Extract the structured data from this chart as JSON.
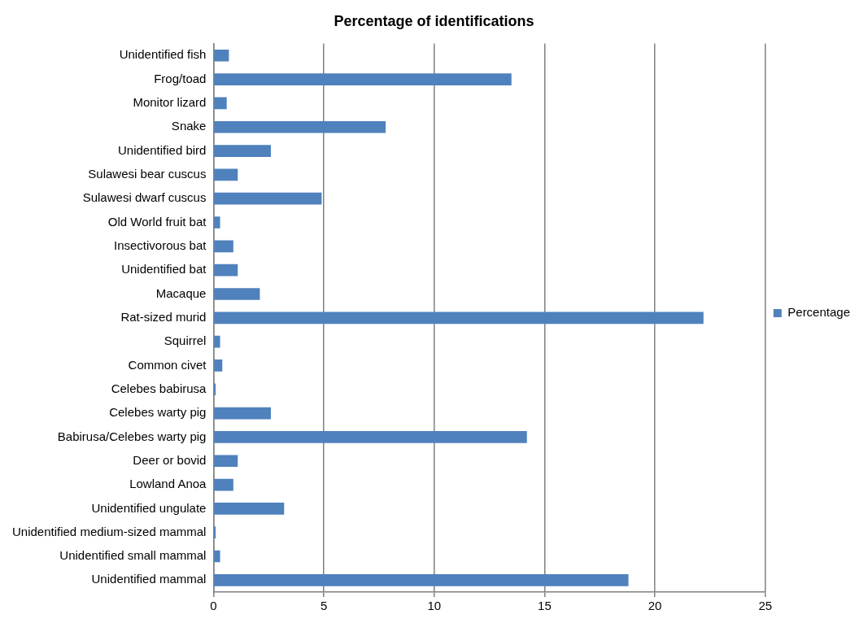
{
  "chart_data": {
    "type": "bar",
    "orientation": "horizontal",
    "title": "Percentage of identifications",
    "categories": [
      "Unidentified fish",
      "Frog/toad",
      "Monitor lizard",
      "Snake",
      "Unidentified bird",
      "Sulawesi bear cuscus",
      "Sulawesi dwarf cuscus",
      "Old World fruit bat",
      "Insectivorous bat",
      "Unidentified bat",
      "Macaque",
      "Rat-sized murid",
      "Squirrel",
      "Common civet",
      "Celebes babirusa",
      "Celebes warty pig",
      "Babirusa/Celebes warty pig",
      "Deer or bovid",
      "Lowland Anoa",
      "Unidentified ungulate",
      "Unidentified medium-sized mammal",
      "Unidentified small mammal",
      "Unidentified mammal"
    ],
    "series": [
      {
        "name": "Percentage",
        "color": "#4f81bd",
        "values": [
          0.7,
          13.5,
          0.6,
          7.8,
          2.6,
          1.1,
          4.9,
          0.3,
          0.9,
          1.1,
          2.1,
          22.2,
          0.3,
          0.4,
          0.1,
          2.6,
          14.2,
          1.1,
          0.9,
          3.2,
          0.1,
          0.3,
          18.8
        ]
      }
    ],
    "xlim": [
      0,
      25
    ],
    "xticks": [
      0,
      5,
      10,
      15,
      20,
      25
    ],
    "grid": "x",
    "legend": "right"
  }
}
